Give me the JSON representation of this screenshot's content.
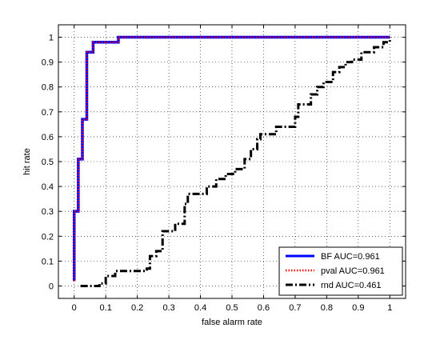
{
  "chart_data": {
    "type": "line",
    "title": "",
    "xlabel": "false alarm rate",
    "ylabel": "hit rate",
    "xlim": [
      -0.05,
      1.05
    ],
    "ylim": [
      -0.05,
      1.05
    ],
    "xticks": [
      0,
      0.1,
      0.2,
      0.3,
      0.4,
      0.5,
      0.6,
      0.7,
      0.8,
      0.9,
      1
    ],
    "yticks": [
      0,
      0.1,
      0.2,
      0.3,
      0.4,
      0.5,
      0.6,
      0.7,
      0.8,
      0.9,
      1
    ],
    "xtick_labels": [
      "0",
      "0.1",
      "0.2",
      "0.3",
      "0.4",
      "0.5",
      "0.6",
      "0.7",
      "0.8",
      "0.9",
      "1"
    ],
    "ytick_labels": [
      "0",
      "0.1",
      "0.2",
      "0.3",
      "0.4",
      "0.5",
      "0.6",
      "0.7",
      "0.8",
      "0.9",
      "1"
    ],
    "grid": true,
    "legend_position": "bottom-right",
    "series": [
      {
        "name": "BF AUC=0.961",
        "color": "#0000ff",
        "style": "solid",
        "x": [
          0,
          0,
          0.013,
          0.013,
          0.026,
          0.026,
          0.04,
          0.04,
          0.06,
          0.06,
          0.14,
          0.14,
          0.37,
          0.37,
          1,
          1
        ],
        "y": [
          0.02,
          0.3,
          0.3,
          0.51,
          0.51,
          0.67,
          0.67,
          0.94,
          0.94,
          0.98,
          0.98,
          1.0,
          1.0,
          1.0,
          1.0,
          1.0
        ]
      },
      {
        "name": "pval AUC=0.961",
        "color": "#ff0000",
        "style": "dotted",
        "x": [
          0,
          0,
          0.013,
          0.013,
          0.026,
          0.026,
          0.04,
          0.04,
          0.06,
          0.06,
          0.14,
          0.14,
          0.37,
          0.37,
          1,
          1
        ],
        "y": [
          0.02,
          0.3,
          0.3,
          0.51,
          0.51,
          0.67,
          0.67,
          0.94,
          0.94,
          0.98,
          0.98,
          1.0,
          1.0,
          1.0,
          1.0,
          1.0
        ]
      },
      {
        "name": "rnd AUC=0.461",
        "color": "#000000",
        "style": "dash-dot",
        "x": [
          0.02,
          0.08,
          0.08,
          0.1,
          0.1,
          0.13,
          0.13,
          0.23,
          0.23,
          0.24,
          0.24,
          0.26,
          0.26,
          0.28,
          0.28,
          0.32,
          0.32,
          0.35,
          0.35,
          0.36,
          0.36,
          0.42,
          0.42,
          0.45,
          0.45,
          0.48,
          0.48,
          0.51,
          0.51,
          0.54,
          0.54,
          0.56,
          0.56,
          0.58,
          0.58,
          0.59,
          0.59,
          0.64,
          0.64,
          0.7,
          0.7,
          0.71,
          0.71,
          0.75,
          0.75,
          0.77,
          0.77,
          0.79,
          0.79,
          0.82,
          0.82,
          0.84,
          0.84,
          0.86,
          0.86,
          0.88,
          0.88,
          0.91,
          0.91,
          0.95,
          0.95,
          0.98,
          0.98,
          1.0,
          1.0
        ],
        "y": [
          0.0,
          0.0,
          0.01,
          0.01,
          0.04,
          0.04,
          0.06,
          0.06,
          0.07,
          0.07,
          0.12,
          0.12,
          0.14,
          0.14,
          0.22,
          0.22,
          0.25,
          0.25,
          0.33,
          0.33,
          0.37,
          0.37,
          0.4,
          0.4,
          0.43,
          0.43,
          0.45,
          0.45,
          0.47,
          0.47,
          0.51,
          0.51,
          0.55,
          0.55,
          0.59,
          0.59,
          0.61,
          0.61,
          0.64,
          0.64,
          0.68,
          0.68,
          0.73,
          0.73,
          0.77,
          0.77,
          0.8,
          0.8,
          0.82,
          0.82,
          0.86,
          0.86,
          0.88,
          0.88,
          0.9,
          0.9,
          0.91,
          0.91,
          0.94,
          0.94,
          0.96,
          0.96,
          0.98,
          0.98,
          1.0
        ]
      }
    ]
  }
}
